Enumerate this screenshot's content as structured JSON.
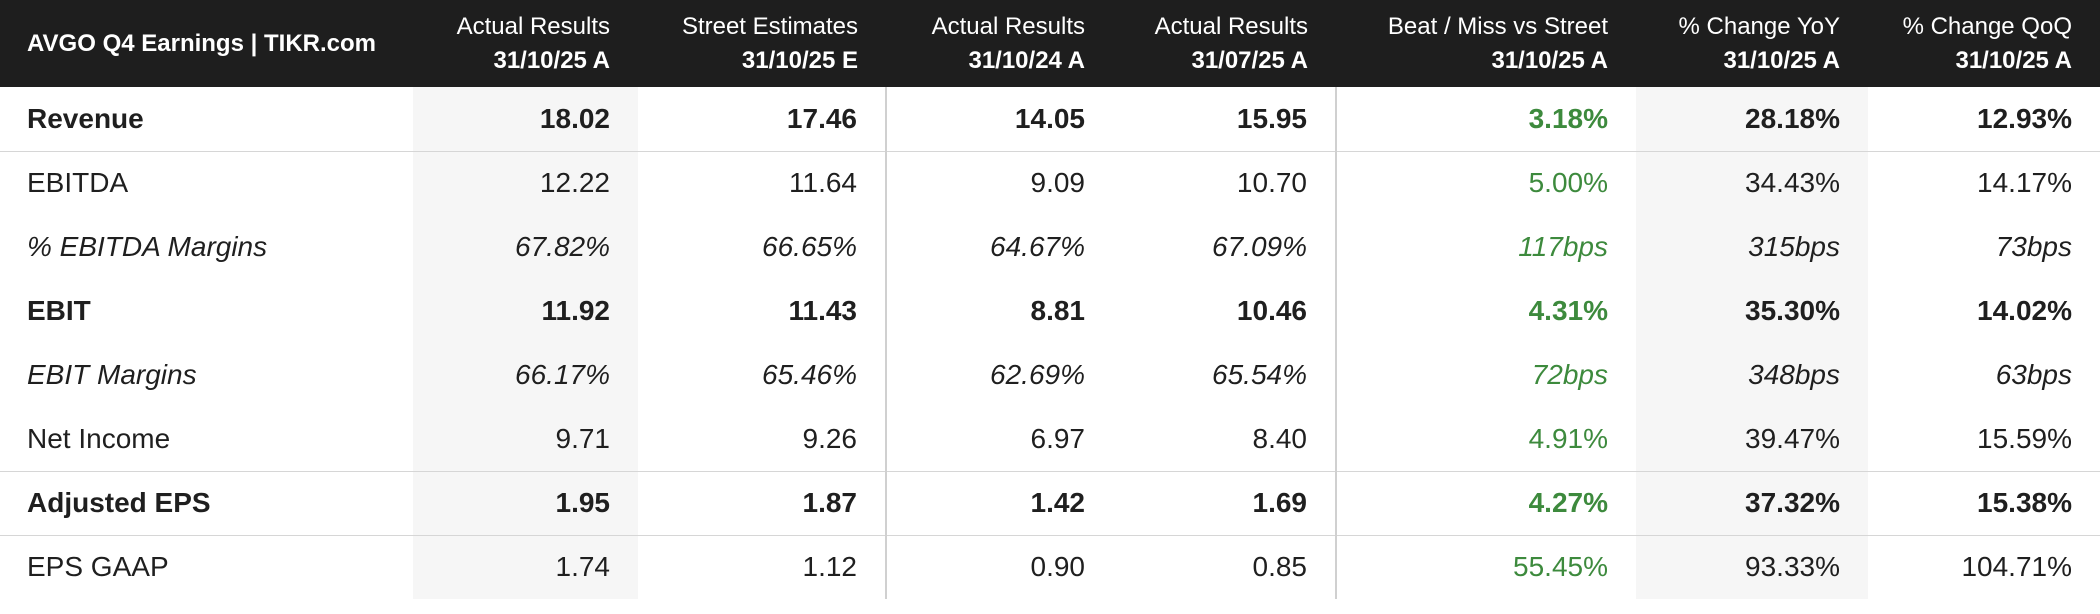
{
  "table": {
    "title": "AVGO Q4 Earnings | TIKR.com",
    "columns": [
      {
        "line1": "Actual Results",
        "line2": "31/10/25 A"
      },
      {
        "line1": "Street Estimates",
        "line2": "31/10/25 E"
      },
      {
        "line1": "Actual Results",
        "line2": "31/10/24 A"
      },
      {
        "line1": "Actual Results",
        "line2": "31/07/25 A"
      },
      {
        "line1": "Beat / Miss vs Street",
        "line2": "31/10/25 A"
      },
      {
        "line1": "% Change YoY",
        "line2": "31/10/25 A"
      },
      {
        "line1": "% Change QoQ",
        "line2": "31/10/25 A"
      }
    ],
    "rows": [
      {
        "label": "Revenue",
        "values": [
          "18.02",
          "17.46",
          "14.05",
          "15.95",
          "3.18%",
          "28.18%",
          "12.93%"
        ]
      },
      {
        "label": "EBITDA",
        "values": [
          "12.22",
          "11.64",
          "9.09",
          "10.70",
          "5.00%",
          "34.43%",
          "14.17%"
        ]
      },
      {
        "label": "% EBITDA Margins",
        "values": [
          "67.82%",
          "66.65%",
          "64.67%",
          "67.09%",
          "117bps",
          "315bps",
          "73bps"
        ]
      },
      {
        "label": "EBIT",
        "values": [
          "11.92",
          "11.43",
          "8.81",
          "10.46",
          "4.31%",
          "35.30%",
          "14.02%"
        ]
      },
      {
        "label": "EBIT Margins",
        "values": [
          "66.17%",
          "65.46%",
          "62.69%",
          "65.54%",
          "72bps",
          "348bps",
          "63bps"
        ]
      },
      {
        "label": "Net Income",
        "values": [
          "9.71",
          "9.26",
          "6.97",
          "8.40",
          "4.91%",
          "39.47%",
          "15.59%"
        ]
      },
      {
        "label": "Adjusted EPS",
        "values": [
          "1.95",
          "1.87",
          "1.42",
          "1.69",
          "4.27%",
          "37.32%",
          "15.38%"
        ]
      },
      {
        "label": "EPS GAAP",
        "values": [
          "1.74",
          "1.12",
          "0.90",
          "0.85",
          "55.45%",
          "93.33%",
          "104.71%"
        ]
      }
    ]
  },
  "colors": {
    "header_bg": "#1e1e1e",
    "beat_green": "#3d8a3d",
    "shade": "#f6f6f6"
  }
}
